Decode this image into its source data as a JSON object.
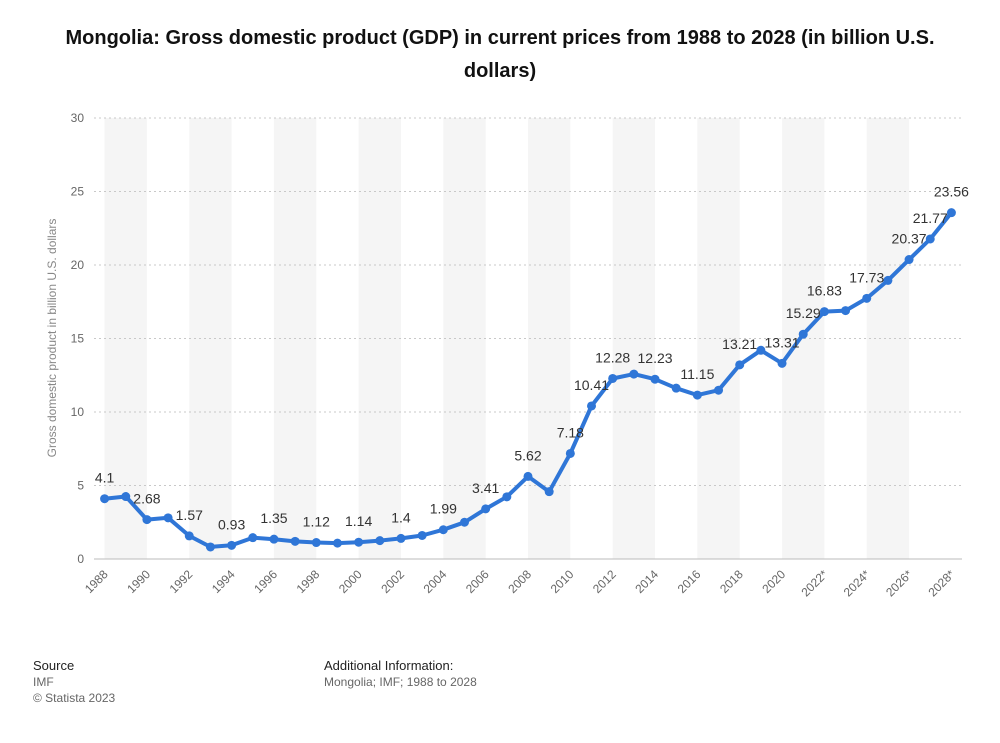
{
  "chart_data": {
    "type": "line",
    "title": "Mongolia: Gross domestic product (GDP) in current prices from 1988 to 2028 (in billion U.S. dollars)",
    "ylabel": "Gross domestic product in billion U.S. dollars",
    "xlabel": "",
    "ylim": [
      0,
      30
    ],
    "yticks": [
      0,
      5,
      10,
      15,
      20,
      25,
      30
    ],
    "grid": true,
    "legend": "none",
    "x": [
      1988,
      1989,
      1990,
      1991,
      1992,
      1993,
      1994,
      1995,
      1996,
      1997,
      1998,
      1999,
      2000,
      2001,
      2002,
      2003,
      2004,
      2005,
      2006,
      2007,
      2008,
      2009,
      2010,
      2011,
      2012,
      2013,
      2014,
      2015,
      2016,
      2017,
      2018,
      2019,
      2020,
      2021,
      2022,
      2023,
      2024,
      2025,
      2026,
      2027,
      2028
    ],
    "xtick_labels": [
      "1988",
      "1990",
      "1992",
      "1994",
      "1996",
      "1998",
      "2000",
      "2002",
      "2004",
      "2006",
      "2008",
      "2010",
      "2012",
      "2014",
      "2016",
      "2018",
      "2020",
      "2022*",
      "2024*",
      "2026*",
      "2028*"
    ],
    "series": [
      {
        "values": [
          4.1,
          4.25,
          2.68,
          2.8,
          1.57,
          0.82,
          0.93,
          1.45,
          1.35,
          1.2,
          1.12,
          1.08,
          1.14,
          1.25,
          1.4,
          1.6,
          1.99,
          2.5,
          3.41,
          4.23,
          5.62,
          4.58,
          7.18,
          10.41,
          12.28,
          12.58,
          12.23,
          11.62,
          11.15,
          11.48,
          13.21,
          14.2,
          13.31,
          15.29,
          16.83,
          16.9,
          17.73,
          18.95,
          20.37,
          21.77,
          23.56
        ],
        "labels": [
          "4.1",
          null,
          "2.68",
          null,
          "1.57",
          null,
          "0.93",
          null,
          "1.35",
          null,
          "1.12",
          null,
          "1.14",
          null,
          "1.4",
          null,
          "1.99",
          null,
          "3.41",
          null,
          "5.62",
          null,
          "7.18",
          "10.41",
          "12.28",
          null,
          "12.23",
          null,
          "11.15",
          null,
          "13.21",
          null,
          "13.31",
          "15.29",
          "16.83",
          null,
          "17.73",
          null,
          "20.37",
          "21.77",
          "23.56"
        ]
      }
    ],
    "colors": {
      "line": "#2f76d7",
      "band": "#f5f5f5",
      "grid": "#c8c8c8"
    }
  },
  "footer": {
    "source_heading": "Source",
    "source_text": "IMF",
    "copyright": "© Statista 2023",
    "info_heading": "Additional Information:",
    "info_text": "Mongolia; IMF; 1988 to 2028"
  }
}
